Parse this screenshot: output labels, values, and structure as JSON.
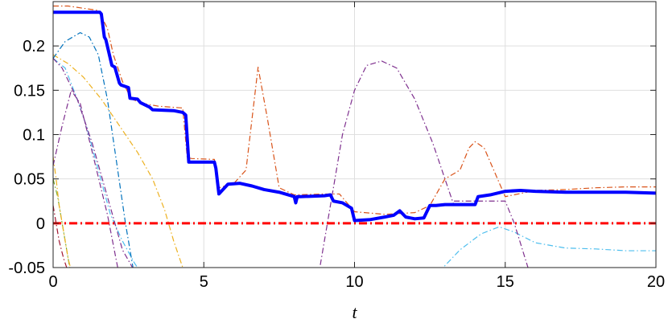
{
  "chart_data": {
    "type": "line",
    "title": "",
    "xlabel": "t",
    "ylabel": "",
    "xlim": [
      0,
      20
    ],
    "ylim": [
      -0.05,
      0.25
    ],
    "grid": true,
    "x_ticks": [
      0,
      5,
      10,
      15,
      20
    ],
    "x_tick_labels": [
      "0",
      "5",
      "10",
      "15",
      "20"
    ],
    "y_ticks": [
      -0.05,
      0,
      0.05,
      0.1,
      0.15,
      0.2
    ],
    "y_tick_labels": [
      "-0.05",
      "0",
      "0.05",
      "0.1",
      "0.15",
      "0.2"
    ],
    "series": [
      {
        "color": "#0000ff",
        "style": "solid",
        "width": 4,
        "x": [
          0,
          1.55,
          1.6,
          1.7,
          1.75,
          1.95,
          2.05,
          2.2,
          2.25,
          2.5,
          2.55,
          2.8,
          2.9,
          3.2,
          3.3,
          4.0,
          4.3,
          4.4,
          4.5,
          5.35,
          5.4,
          5.5,
          5.8,
          6.2,
          6.6,
          7.0,
          7.5,
          8.0,
          8.05,
          8.1,
          8.2,
          9.0,
          9.2,
          9.3,
          9.6,
          9.9,
          10.0,
          10.5,
          11.0,
          11.3,
          11.5,
          11.7,
          12.0,
          12.3,
          12.5,
          12.7,
          13.0,
          13.5,
          14.0,
          14.1,
          14.5,
          15.0,
          15.5,
          16.0,
          17.0,
          18.0,
          19.0,
          20.0
        ],
        "y": [
          0.238,
          0.238,
          0.236,
          0.21,
          0.207,
          0.178,
          0.176,
          0.158,
          0.156,
          0.153,
          0.141,
          0.14,
          0.136,
          0.131,
          0.128,
          0.127,
          0.125,
          0.122,
          0.069,
          0.069,
          0.062,
          0.033,
          0.044,
          0.045,
          0.042,
          0.038,
          0.035,
          0.03,
          0.023,
          0.03,
          0.03,
          0.031,
          0.032,
          0.025,
          0.023,
          0.017,
          0.003,
          0.004,
          0.007,
          0.009,
          0.014,
          0.007,
          0.005,
          0.006,
          0.02,
          0.02,
          0.021,
          0.021,
          0.021,
          0.03,
          0.032,
          0.036,
          0.037,
          0.036,
          0.035,
          0.035,
          0.035,
          0.034
        ]
      },
      {
        "color": "#ff0000",
        "style": "dashdot",
        "width": 3,
        "x": [
          0,
          20
        ],
        "y": [
          0,
          0
        ]
      },
      {
        "color": "#d95319",
        "style": "dashdot",
        "width": 1.2,
        "x": [
          0,
          0.5,
          1.5,
          1.8,
          2.0,
          2.3,
          2.6,
          3.0,
          3.5,
          4.3,
          4.45,
          4.6,
          5.35,
          5.5,
          6.0,
          6.4,
          6.8,
          7.1,
          7.5,
          8.0,
          9.0,
          9.5,
          10.0,
          11.0,
          12.0,
          12.5,
          13.0,
          13.5,
          13.8,
          14.0,
          14.3,
          15.0,
          16.0,
          17.0,
          18.0,
          19.0,
          20.0
        ],
        "y": [
          0.245,
          0.245,
          0.24,
          0.22,
          0.19,
          0.16,
          0.14,
          0.135,
          0.132,
          0.13,
          0.074,
          0.073,
          0.072,
          0.04,
          0.045,
          0.06,
          0.176,
          0.12,
          0.04,
          0.032,
          0.033,
          0.033,
          0.013,
          0.01,
          0.012,
          0.02,
          0.05,
          0.06,
          0.085,
          0.092,
          0.085,
          0.03,
          0.037,
          0.038,
          0.04,
          0.041,
          0.041
        ]
      },
      {
        "color": "#7e2f8e",
        "style": "dashdot",
        "width": 1.2,
        "x": [
          8.8,
          9.2,
          9.6,
          10.0,
          10.4,
          10.9,
          11.4,
          12.0,
          12.6,
          13.0,
          13.3
        ],
        "y": [
          -0.06,
          0.02,
          0.1,
          0.15,
          0.178,
          0.183,
          0.175,
          0.14,
          0.09,
          0.05,
          0.02
        ]
      },
      {
        "color": "#7e2f8e",
        "style": "dashdot",
        "width": 1.2,
        "x": [
          13.3,
          15.0,
          15.3,
          15.8
        ],
        "y": [
          0.025,
          0.025,
          0.0,
          -0.055
        ]
      },
      {
        "color": "#7e2f8e",
        "style": "dashdot",
        "width": 1.2,
        "x": [
          0,
          0.3,
          0.8,
          1.3,
          1.8,
          2.3,
          2.8
        ],
        "y": [
          0.186,
          0.175,
          0.14,
          0.09,
          0.03,
          -0.03,
          -0.06
        ]
      },
      {
        "color": "#7e2f8e",
        "style": "dashdot",
        "width": 1.2,
        "x": [
          0,
          0.3,
          0.6,
          0.9,
          1.3,
          1.8,
          2.2
        ],
        "y": [
          0.065,
          0.11,
          0.15,
          0.135,
          0.08,
          0.01,
          -0.06
        ]
      },
      {
        "color": "#0072bd",
        "style": "dashdot",
        "width": 1.2,
        "x": [
          0,
          0.4,
          0.9,
          1.2,
          1.5,
          1.8,
          2.1,
          2.4,
          2.7
        ],
        "y": [
          0.186,
          0.205,
          0.215,
          0.21,
          0.19,
          0.14,
          0.07,
          0.0,
          -0.06
        ]
      },
      {
        "color": "#4dbeee",
        "style": "dashdot",
        "width": 1.2,
        "x": [
          0,
          0.4,
          0.8,
          1.1,
          1.5,
          1.9,
          2.3,
          2.7,
          3.0
        ],
        "y": [
          0.186,
          0.175,
          0.14,
          0.11,
          0.06,
          0.01,
          -0.02,
          -0.045,
          -0.06
        ]
      },
      {
        "color": "#4dbeee",
        "style": "dashdot",
        "width": 1.2,
        "x": [
          12.8,
          13.5,
          14.2,
          14.8,
          15.3,
          16.0,
          17.0,
          18.0,
          19.0,
          20.0
        ],
        "y": [
          -0.055,
          -0.03,
          -0.012,
          -0.004,
          -0.01,
          -0.022,
          -0.028,
          -0.029,
          -0.031,
          -0.031
        ]
      },
      {
        "color": "#edb120",
        "style": "dashdot",
        "width": 1.2,
        "x": [
          0,
          0.5,
          1.0,
          1.6,
          2.2,
          2.8,
          3.3,
          3.7,
          4.0,
          4.2,
          4.4
        ],
        "y": [
          0.19,
          0.18,
          0.165,
          0.14,
          0.11,
          0.08,
          0.05,
          0.015,
          -0.02,
          -0.04,
          -0.06
        ]
      },
      {
        "color": "#edb120",
        "style": "dashdot",
        "width": 1.2,
        "x": [
          0,
          0.1,
          0.2,
          0.35,
          0.5,
          0.65
        ],
        "y": [
          0.075,
          0.05,
          0.02,
          -0.01,
          -0.04,
          -0.06
        ]
      },
      {
        "color": "#77ac30",
        "style": "dashdot",
        "width": 1.2,
        "x": [
          0,
          0.15,
          0.3,
          0.45,
          0.6
        ],
        "y": [
          0.05,
          0.03,
          0.0,
          -0.03,
          -0.06
        ]
      },
      {
        "color": "#a2142f",
        "style": "dashdot",
        "width": 1.2,
        "x": [
          0,
          0.1,
          0.2,
          0.35,
          0.5,
          0.6
        ],
        "y": [
          0.02,
          0.0,
          -0.02,
          -0.04,
          -0.055,
          -0.06
        ]
      }
    ]
  }
}
